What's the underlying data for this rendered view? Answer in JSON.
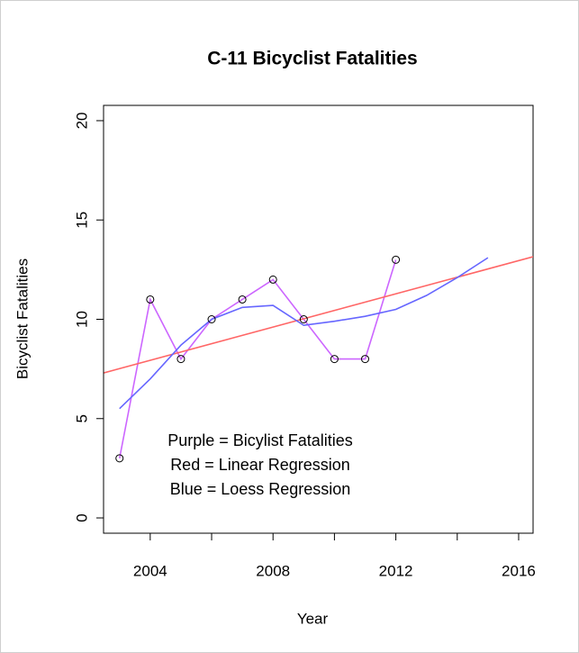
{
  "chart_data": {
    "type": "line",
    "title": "C-11 Bicyclist Fatalities",
    "x_label": "Year",
    "y_label": "Bicyclist Fatalities",
    "annotations": [
      "Purple = Bicylist Fatalities",
      "Red = Linear Regression",
      "Blue = Loess Regression"
    ],
    "xlim": [
      2002.48,
      2016.47
    ],
    "ylim": [
      -0.77,
      20.77
    ],
    "xticks": [
      2004,
      2008,
      2012,
      2016
    ],
    "xminorticks": [
      2006,
      2010,
      2014
    ],
    "yticks": [
      0,
      5,
      10,
      15,
      20
    ],
    "series": [
      {
        "color": "#cc66ff",
        "markers": true,
        "x": [
          2003,
          2004,
          2005,
          2006,
          2007,
          2008,
          2009,
          2010,
          2011,
          2012
        ],
        "values": [
          3,
          11,
          8,
          10,
          11,
          12,
          10,
          8,
          8,
          13
        ]
      },
      {
        "color": "#ff6666",
        "markers": false,
        "x": [
          2002.48,
          2016.47
        ],
        "values": [
          7.3,
          13.15
        ]
      },
      {
        "color": "#6666ff",
        "markers": false,
        "x": [
          2003,
          2004,
          2005,
          2006,
          2007,
          2008,
          2009,
          2010,
          2011,
          2012,
          2013,
          2014,
          2015
        ],
        "values": [
          5.5,
          7.0,
          8.7,
          10.0,
          10.6,
          10.7,
          9.7,
          9.9,
          10.15,
          10.5,
          11.2,
          12.1,
          13.1
        ]
      }
    ]
  }
}
